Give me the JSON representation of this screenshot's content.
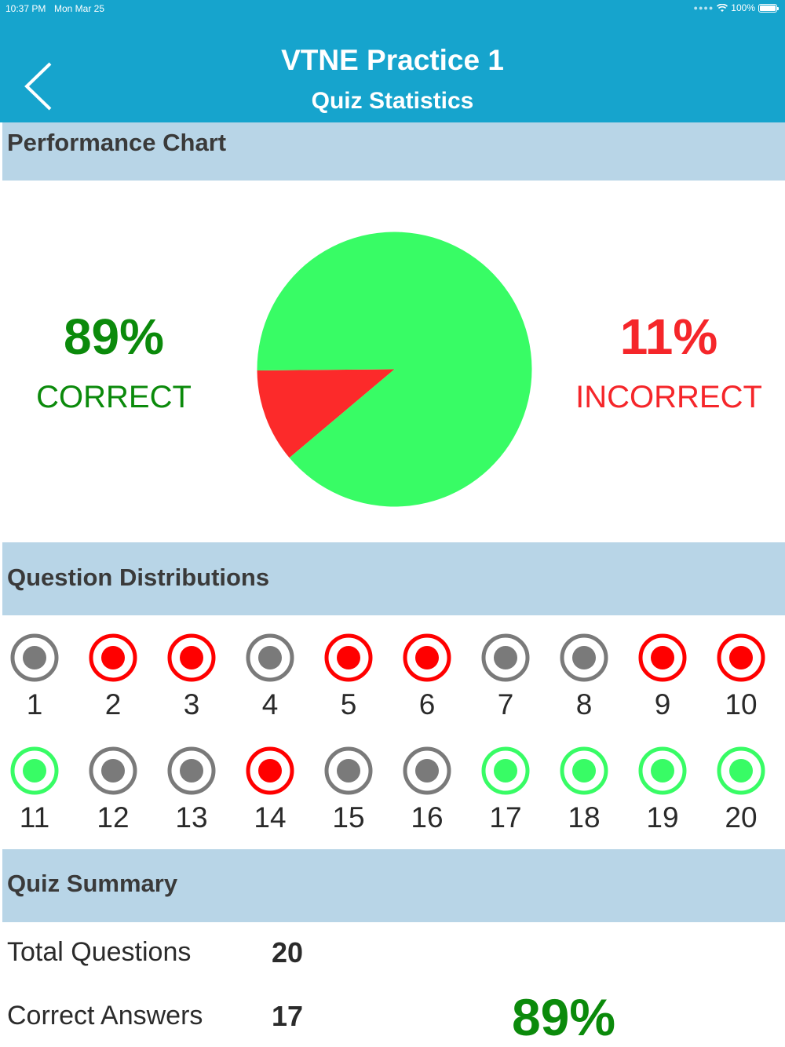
{
  "status_bar": {
    "time": "10:37 PM",
    "date": "Mon Mar 25",
    "battery": "100%"
  },
  "header": {
    "title": "VTNE Practice 1",
    "subtitle": "Quiz Statistics"
  },
  "sections": {
    "performance": "Performance Chart",
    "distributions": "Question Distributions",
    "summary": "Quiz Summary"
  },
  "performance": {
    "correct_pct": "89%",
    "correct_label": "CORRECT",
    "incorrect_pct": "11%",
    "incorrect_label": "INCORRECT"
  },
  "chart_data": {
    "type": "pie",
    "slices": [
      {
        "label": "CORRECT",
        "value": 89,
        "color": "#38fc65"
      },
      {
        "label": "INCORRECT",
        "value": 11,
        "color": "#fc2a2a"
      }
    ]
  },
  "colors": {
    "correct": "#38fc65",
    "incorrect": "#ff0000",
    "unanswered": "#7a7a7a",
    "correct_text": "#0b8a0b",
    "incorrect_text": "#f5262a"
  },
  "questions": [
    {
      "number": "1",
      "status": "unanswered"
    },
    {
      "number": "2",
      "status": "incorrect"
    },
    {
      "number": "3",
      "status": "incorrect"
    },
    {
      "number": "4",
      "status": "unanswered"
    },
    {
      "number": "5",
      "status": "incorrect"
    },
    {
      "number": "6",
      "status": "incorrect"
    },
    {
      "number": "7",
      "status": "unanswered"
    },
    {
      "number": "8",
      "status": "unanswered"
    },
    {
      "number": "9",
      "status": "incorrect"
    },
    {
      "number": "10",
      "status": "incorrect"
    },
    {
      "number": "11",
      "status": "correct"
    },
    {
      "number": "12",
      "status": "unanswered"
    },
    {
      "number": "13",
      "status": "unanswered"
    },
    {
      "number": "14",
      "status": "incorrect"
    },
    {
      "number": "15",
      "status": "unanswered"
    },
    {
      "number": "16",
      "status": "unanswered"
    },
    {
      "number": "17",
      "status": "correct"
    },
    {
      "number": "18",
      "status": "correct"
    },
    {
      "number": "19",
      "status": "correct"
    },
    {
      "number": "20",
      "status": "correct"
    }
  ],
  "summary": {
    "total_label": "Total Questions",
    "total_value": "20",
    "correct_label": "Correct Answers",
    "correct_value": "17",
    "score_pct": "89%"
  }
}
